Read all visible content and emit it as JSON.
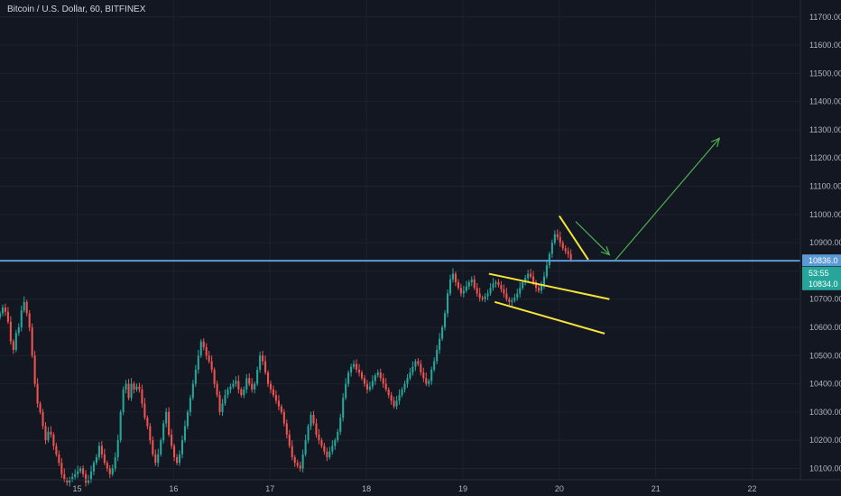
{
  "header": {
    "title": "Bitcoin / U.S. Dollar, 60, BITFINEX"
  },
  "colors": {
    "background": "#131722",
    "up": "#26a69a",
    "down": "#ef5350",
    "horizontal_line": "#5b9bd5",
    "trendline": "#f5e23b",
    "arrow": "#4caf50",
    "axis_text": "#b2b5be"
  },
  "price_tags": {
    "level_label": "10836.0",
    "countdown_label": "53:55",
    "current_label": "10834.0"
  },
  "chart_data": {
    "type": "candlestick",
    "title": "Bitcoin / U.S. Dollar, 60, BITFINEX",
    "x_tick_labels": [
      "15",
      "16",
      "17",
      "18",
      "19",
      "20",
      "21",
      "22"
    ],
    "y_tick_labels": [
      "11700.00",
      "11600.00",
      "11500.00",
      "11400.00",
      "11300.00",
      "11200.00",
      "11100.00",
      "11000.00",
      "10900.00",
      "10800.00",
      "10700.00",
      "10600.00",
      "10500.00",
      "10400.00",
      "10300.00",
      "10200.00",
      "10100.00"
    ],
    "y_ticks": [
      11700,
      11600,
      11500,
      11400,
      11300,
      11200,
      11100,
      11000,
      10900,
      10800,
      10700,
      10600,
      10500,
      10400,
      10300,
      10200,
      10100
    ],
    "ylim": [
      10060,
      11760
    ],
    "x_day_range": [
      14.2,
      22.5
    ],
    "horizontal_line": {
      "price": 10836
    },
    "current_price": 10834,
    "trendlines": [
      {
        "x1": 19.27,
        "y1": 10790,
        "x2": 20.52,
        "y2": 10700
      },
      {
        "x1": 19.33,
        "y1": 10690,
        "x2": 20.47,
        "y2": 10578
      },
      {
        "x1": 20.0,
        "y1": 10995,
        "x2": 20.3,
        "y2": 10840
      }
    ],
    "arrows": [
      {
        "x1": 20.17,
        "y1": 10975,
        "x2": 20.52,
        "y2": 10857
      },
      {
        "x1": 20.58,
        "y1": 10838,
        "x2": 21.66,
        "y2": 11270
      }
    ],
    "closes": [
      10650,
      10670,
      10655,
      10620,
      10550,
      10520,
      10580,
      10600,
      10660,
      10690,
      10650,
      10600,
      10500,
      10400,
      10330,
      10300,
      10250,
      10200,
      10230,
      10220,
      10180,
      10150,
      10120,
      10080,
      10060,
      10050,
      10060,
      10070,
      10080,
      10090,
      10100,
      10080,
      10050,
      10060,
      10090,
      10120,
      10140,
      10180,
      10150,
      10120,
      10100,
      10080,
      10100,
      10140,
      10200,
      10300,
      10380,
      10400,
      10350,
      10400,
      10380,
      10390,
      10380,
      10330,
      10280,
      10250,
      10200,
      10150,
      10120,
      10150,
      10200,
      10260,
      10300,
      10220,
      10180,
      10140,
      10120,
      10150,
      10200,
      10250,
      10300,
      10350,
      10400,
      10450,
      10500,
      10550,
      10530,
      10500,
      10480,
      10450,
      10400,
      10360,
      10300,
      10330,
      10360,
      10380,
      10390,
      10400,
      10410,
      10380,
      10360,
      10380,
      10420,
      10400,
      10380,
      10400,
      10450,
      10500,
      10480,
      10440,
      10400,
      10380,
      10360,
      10340,
      10320,
      10300,
      10260,
      10220,
      10180,
      10140,
      10120,
      10110,
      10100,
      10150,
      10200,
      10250,
      10290,
      10260,
      10220,
      10200,
      10180,
      10160,
      10140,
      10160,
      10180,
      10200,
      10230,
      10280,
      10350,
      10400,
      10440,
      10460,
      10470,
      10450,
      10440,
      10420,
      10400,
      10380,
      10390,
      10410,
      10430,
      10440,
      10420,
      10400,
      10380,
      10360,
      10340,
      10320,
      10340,
      10360,
      10380,
      10400,
      10420,
      10440,
      10460,
      10480,
      10470,
      10440,
      10420,
      10400,
      10410,
      10450,
      10480,
      10520,
      10560,
      10600,
      10650,
      10720,
      10770,
      10790,
      10760,
      10740,
      10720,
      10730,
      10745,
      10760,
      10770,
      10740,
      10720,
      10705,
      10700,
      10710,
      10720,
      10740,
      10755,
      10760,
      10750,
      10735,
      10720,
      10700,
      10690,
      10695,
      10705,
      10720,
      10740,
      10760,
      10775,
      10790,
      10780,
      10760,
      10740,
      10730,
      10750,
      10780,
      10820,
      10860,
      10900,
      10930,
      10920,
      10900,
      10880,
      10870,
      10860,
      10840
    ]
  }
}
